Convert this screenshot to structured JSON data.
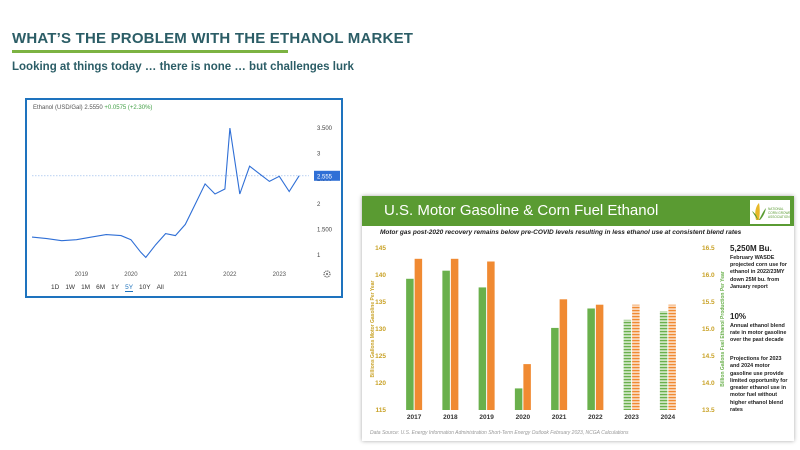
{
  "slide": {
    "title": "WHAT’S THE PROBLEM WITH THE ETHANOL MARKET",
    "subtitle": "Looking at things today … there is none … but challenges lurk"
  },
  "stock_chart": {
    "header_name": "Ethanol (USD/Gal)",
    "header_price": "2.5550",
    "header_change": "+0.0575 (+2.30%)",
    "current_label": "2.555",
    "periods": [
      "1D",
      "1W",
      "1M",
      "6M",
      "1Y",
      "5Y",
      "10Y",
      "All"
    ],
    "selected_period": "5Y",
    "colors": {
      "line": "#2f6fd6",
      "current_badge": "#2f6fd6",
      "border": "#1e73be"
    }
  },
  "corn_chart": {
    "banner_title": "U.S. Motor Gasoline & Corn Fuel Ethanol",
    "caption": "Motor gas post-2020 recovery remains below pre-COVID levels resulting in less ethanol use at consistent blend rates",
    "logo_text": "NATIONAL CORN GROWERS ASSOCIATION",
    "annotations": [
      {
        "big": "5,250M Bu.",
        "text": "February WASDE projected corn use for ethanol in 2022/23MY down 25M bu. from January report"
      },
      {
        "big": "10%",
        "text": "Annual ethanol blend rate in motor gasoline over the past decade"
      },
      {
        "big": "",
        "text": "Projections for 2023 and 2024 motor gasoline use provide limited opportunity for greater ethanol use in motor fuel without higher ethanol blend rates"
      }
    ],
    "source": "Data Source: U.S. Energy Information Administration Short-Term Energy Outlook February 2023, NCGA Calculations",
    "colors": {
      "gasoline": "#6ab04c",
      "ethanol": "#f08a32",
      "axis_text": "#c9a227"
    }
  },
  "chart_data": [
    {
      "type": "line",
      "title": "Ethanol (USD/Gal)",
      "xlabel": "",
      "ylabel": "",
      "x_ticks": [
        "2019",
        "2020",
        "2021",
        "2022",
        "2023"
      ],
      "y_ticks": [
        "1",
        "1.500",
        "2",
        "2.500",
        "3",
        "3.500"
      ],
      "ylim": [
        0.8,
        3.7
      ],
      "grid": false,
      "series": [
        {
          "x": [
            2018.0,
            2018.3,
            2018.6,
            2018.9,
            2019.2,
            2019.5,
            2019.8,
            2020.0,
            2020.2,
            2020.3,
            2020.5,
            2020.7,
            2020.9,
            2021.1,
            2021.3,
            2021.5,
            2021.7,
            2021.9,
            2022.0,
            2022.2,
            2022.4,
            2022.6,
            2022.8,
            2023.0,
            2023.2,
            2023.4
          ],
          "y": [
            1.35,
            1.32,
            1.28,
            1.3,
            1.35,
            1.4,
            1.38,
            1.3,
            1.05,
            0.95,
            1.2,
            1.42,
            1.38,
            1.6,
            2.0,
            2.4,
            2.2,
            2.3,
            3.5,
            2.2,
            2.75,
            2.6,
            2.45,
            2.55,
            2.25,
            2.56
          ]
        }
      ]
    },
    {
      "type": "bar",
      "title": "U.S. Motor Gasoline & Corn Fuel Ethanol",
      "categories": [
        "2017",
        "2018",
        "2019",
        "2020",
        "2021",
        "2022",
        "2023",
        "2024"
      ],
      "ylabel": "Billions Gallons Motor Gasoline Per Year",
      "y2label": "Billion Gallons Fuel Ethanol Production Per Year",
      "ylim": [
        115,
        145
      ],
      "y2lim": [
        13.5,
        16.5
      ],
      "y_ticks": [
        115,
        120,
        125,
        130,
        135,
        140,
        145
      ],
      "y2_ticks": [
        13.5,
        14.0,
        14.5,
        15.0,
        15.5,
        16.0,
        16.5
      ],
      "series": [
        {
          "name": "Motor Gasoline",
          "axis": "left",
          "values": [
            139.3,
            140.8,
            137.7,
            119.0,
            130.2,
            133.8,
            131.7,
            133.3
          ],
          "projected_from_index": 6
        },
        {
          "name": "Fuel Ethanol",
          "axis": "right",
          "values": [
            16.3,
            16.3,
            16.25,
            14.35,
            15.55,
            15.45,
            15.45,
            15.45
          ],
          "projected_from_index": 6
        }
      ]
    }
  ]
}
